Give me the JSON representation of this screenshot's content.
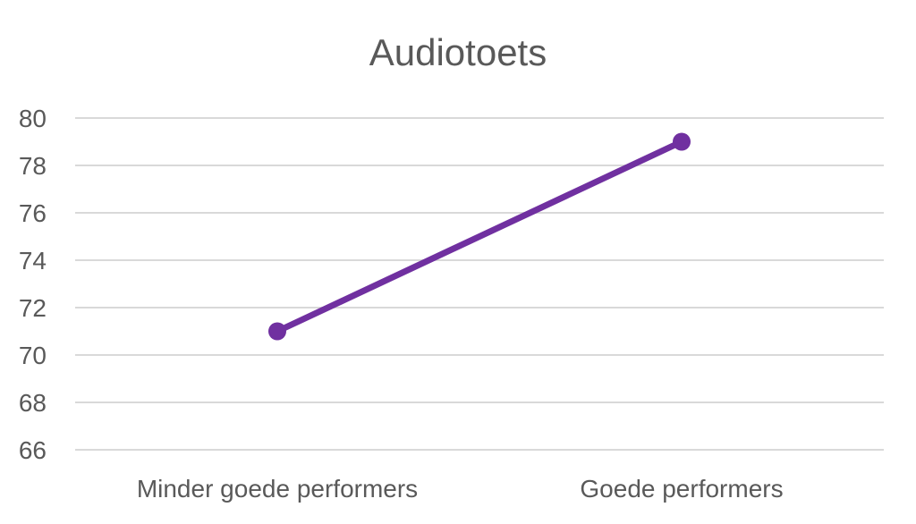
{
  "chart_data": {
    "type": "line",
    "title": "Audiotoets",
    "xlabel": "",
    "ylabel": "",
    "categories": [
      "Minder goede performers",
      "Goede performers"
    ],
    "series": [
      {
        "values": [
          71,
          79
        ],
        "color": "#7030A0"
      }
    ],
    "ylim": [
      66,
      80
    ],
    "yticks": [
      66,
      68,
      70,
      72,
      74,
      76,
      78,
      80
    ],
    "grid": true,
    "legend": "none"
  }
}
